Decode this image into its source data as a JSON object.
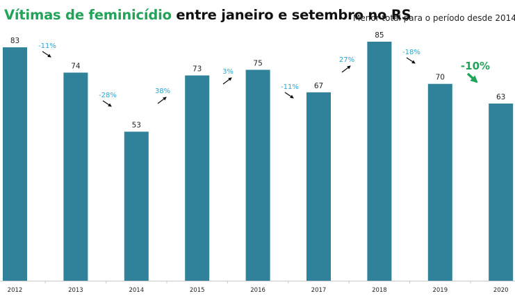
{
  "title": {
    "highlight": "Vítimas de feminicídio",
    "rest": " entre janeiro e setembro no RS"
  },
  "subtitle": "Menor total para o período desde 2014.",
  "colors": {
    "bar": "#2f8299",
    "title_highlight": "#21a35a",
    "change_label": "#2aa6d0",
    "latest_change": "#21a35a",
    "arrow": "#111111"
  },
  "chart_data": {
    "type": "bar",
    "title": "Vítimas de feminicídio entre janeiro e setembro no RS",
    "subtitle": "Menor total para o período desde 2014.",
    "xlabel": "",
    "ylabel": "",
    "categories": [
      "2012",
      "2013",
      "2014",
      "2015",
      "2016",
      "2017",
      "2018",
      "2019",
      "2020"
    ],
    "values": [
      83,
      74,
      53,
      73,
      75,
      67,
      85,
      70,
      63
    ],
    "data_labels": [
      "83",
      "74",
      "53",
      "73",
      "75",
      "67",
      "85",
      "70",
      "63"
    ],
    "ylim": [
      0,
      85
    ],
    "grid": false,
    "legend": "none",
    "annotations": [
      {
        "between": [
          "2012",
          "2013"
        ],
        "text": "-11%",
        "direction": "down"
      },
      {
        "between": [
          "2013",
          "2014"
        ],
        "text": "-28%",
        "direction": "down"
      },
      {
        "between": [
          "2014",
          "2015"
        ],
        "text": "38%",
        "direction": "up"
      },
      {
        "between": [
          "2015",
          "2016"
        ],
        "text": "3%",
        "direction": "up"
      },
      {
        "between": [
          "2016",
          "2017"
        ],
        "text": "-11%",
        "direction": "down"
      },
      {
        "between": [
          "2017",
          "2018"
        ],
        "text": "27%",
        "direction": "up"
      },
      {
        "between": [
          "2018",
          "2019"
        ],
        "text": "-18%",
        "direction": "down"
      },
      {
        "between": [
          "2019",
          "2020"
        ],
        "text": "-10%",
        "direction": "down",
        "emphasis": true
      }
    ]
  }
}
